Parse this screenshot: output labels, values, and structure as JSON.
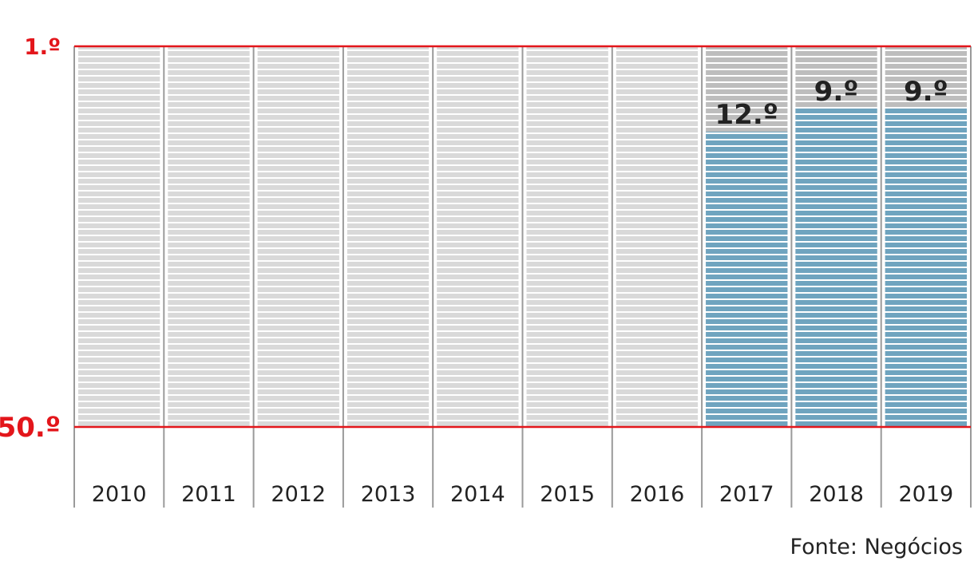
{
  "chart_data": {
    "type": "bar",
    "title": "",
    "xlabel": "",
    "ylabel": "",
    "axis_top_label": "1.º",
    "axis_bottom_label": "50.º",
    "ylim": [
      1,
      50
    ],
    "y_inverted": true,
    "categories": [
      "2010",
      "2011",
      "2012",
      "2013",
      "2014",
      "2015",
      "2016",
      "2017",
      "2018",
      "2019"
    ],
    "values": [
      null,
      null,
      null,
      null,
      null,
      null,
      null,
      12,
      9,
      9
    ],
    "value_labels": [
      "",
      "",
      "",
      "",
      "",
      "",
      "",
      "12.º",
      "9.º",
      "9.º"
    ],
    "source": "Fonte: Negócios",
    "colors": {
      "bar_fill": "#6fa4bf",
      "track_fill": "#d9d9d9",
      "track_fill_ranked": "#bdbdbd",
      "axis_red": "#e3161b",
      "separator": "#9a9a9a"
    }
  }
}
